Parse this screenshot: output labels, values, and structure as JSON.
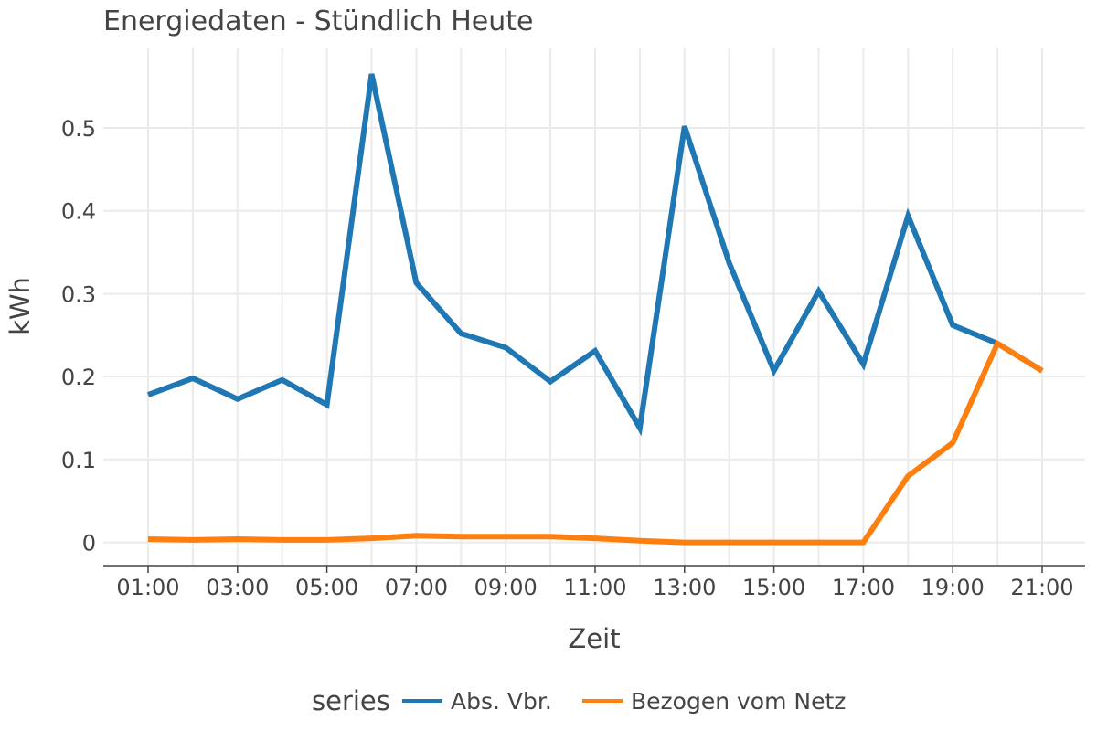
{
  "chart_data": {
    "type": "line",
    "title": "Energiedaten - Stündlich Heute",
    "xlabel": "Zeit",
    "ylabel": "kWh",
    "x": [
      "01:00",
      "02:00",
      "03:00",
      "04:00",
      "05:00",
      "06:00",
      "07:00",
      "08:00",
      "09:00",
      "10:00",
      "11:00",
      "12:00",
      "13:00",
      "14:00",
      "15:00",
      "16:00",
      "17:00",
      "18:00",
      "19:00",
      "20:00",
      "21:00"
    ],
    "x_tick_labels": [
      "01:00",
      "03:00",
      "05:00",
      "07:00",
      "09:00",
      "11:00",
      "13:00",
      "15:00",
      "17:00",
      "19:00",
      "21:00"
    ],
    "y_ticks": [
      0,
      0.1,
      0.2,
      0.3,
      0.4,
      0.5
    ],
    "y_tick_labels": [
      "0",
      "0.1",
      "0.2",
      "0.3",
      "0.4",
      "0.5"
    ],
    "ylim": [
      -0.028,
      0.597
    ],
    "grid": true,
    "legend_title": "series",
    "legend_position": "bottom",
    "series": [
      {
        "name": "Abs. Vbr.",
        "color": "#1f77b4",
        "values": [
          0.178,
          0.198,
          0.173,
          0.196,
          0.166,
          0.565,
          0.313,
          0.252,
          0.235,
          0.194,
          0.231,
          0.138,
          0.502,
          0.337,
          0.207,
          0.303,
          0.215,
          0.394,
          0.262,
          0.24,
          0.207
        ]
      },
      {
        "name": "Bezogen vom Netz",
        "color": "#ff7f0e",
        "values": [
          0.004,
          0.003,
          0.004,
          0.003,
          0.003,
          0.005,
          0.008,
          0.007,
          0.007,
          0.007,
          0.005,
          0.002,
          0.0,
          0.0,
          0.0,
          0.0,
          0.0,
          0.08,
          0.12,
          0.24,
          0.207
        ]
      }
    ]
  }
}
